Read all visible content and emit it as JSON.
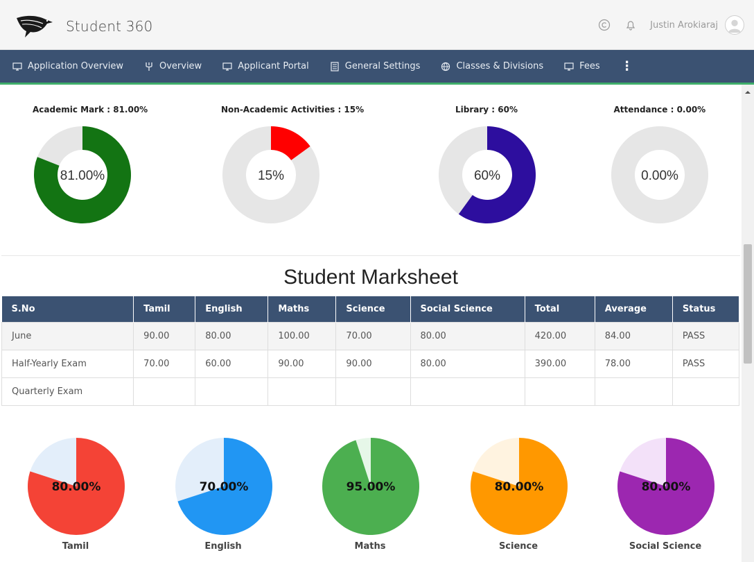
{
  "header": {
    "app_title": "Student 360",
    "logo_icon": "bird-logo-icon",
    "icons": [
      "copyright-icon",
      "bell-icon"
    ],
    "user_name": "Justin Arokiaraj",
    "avatar_icon": "user-avatar-icon"
  },
  "nav": {
    "items": [
      {
        "label": "Application Overview",
        "icon": "monitor-icon"
      },
      {
        "label": "Overview",
        "icon": "fork-icon"
      },
      {
        "label": "Applicant Portal",
        "icon": "monitor-icon"
      },
      {
        "label": "General Settings",
        "icon": "list-icon"
      },
      {
        "label": "Classes & Divisions",
        "icon": "globe-icon"
      },
      {
        "label": "Fees",
        "icon": "monitor-icon"
      }
    ],
    "more_label": "⋮"
  },
  "summary": [
    {
      "label": "Academic Mark : 81.00%",
      "center": "81.00%",
      "value": 81,
      "color": "#137413"
    },
    {
      "label": "Non-Academic Activities : 15%",
      "center": "15%",
      "value": 15,
      "color": "#ff0000"
    },
    {
      "label": "Library : 60%",
      "center": "60%",
      "value": 60,
      "color": "#2d0e9e"
    },
    {
      "label": "Attendance : 0.00%",
      "center": "0.00%",
      "value": 0,
      "color": "#2d0e9e"
    }
  ],
  "marksheet": {
    "title": "Student Marksheet",
    "columns": [
      "S.No",
      "Tamil",
      "English",
      "Maths",
      "Science",
      "Social Science",
      "Total",
      "Average",
      "Status"
    ],
    "rows": [
      [
        "June",
        "90.00",
        "80.00",
        "100.00",
        "70.00",
        "80.00",
        "420.00",
        "84.00",
        "PASS"
      ],
      [
        "Half-Yearly Exam",
        "70.00",
        "60.00",
        "90.00",
        "90.00",
        "80.00",
        "390.00",
        "78.00",
        "PASS"
      ],
      [
        "Quarterly Exam",
        "",
        "",
        "",
        "",
        "",
        "",
        "",
        ""
      ]
    ]
  },
  "chart_data": {
    "type": "pie",
    "categories": [
      "Tamil",
      "English",
      "Maths",
      "Science",
      "Social Science"
    ],
    "values": [
      80,
      70,
      95,
      80,
      80
    ],
    "labels": [
      "80.00%",
      "70.00%",
      "95.00%",
      "80.00%",
      "80.00%"
    ],
    "colors": [
      "#f44336",
      "#2196f3",
      "#4caf50",
      "#ff9800",
      "#9c27b0"
    ],
    "remainder_colors": [
      "#e3eefa",
      "#e3eefa",
      "#e6f7e8",
      "#fff3e0",
      "#f3e1f9"
    ]
  }
}
